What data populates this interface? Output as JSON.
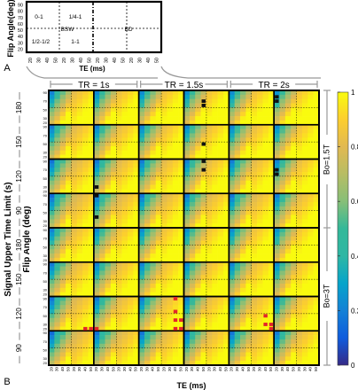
{
  "chart_data": {
    "type": "heatmap",
    "panel_a": {
      "label": "A",
      "ylabel": "Flip Angle(deg)",
      "xlabel": "TE (ms)",
      "y_ticks": [
        "90",
        "80",
        "70",
        "60",
        "50",
        "40",
        "30",
        "20"
      ],
      "x_ticks": [
        "20",
        "30",
        "40",
        "50",
        "20",
        "30",
        "40",
        "50",
        "20",
        "30",
        "40",
        "50",
        "20",
        "30",
        "40",
        "50"
      ],
      "quadrants": [
        "0-1",
        "1/4-1",
        "1/2-1/2",
        "1-1"
      ],
      "left_label": "BSW",
      "right_label": "BD"
    },
    "panel_b": {
      "label": "B",
      "tr_labels": [
        "TR = 1s",
        "TR = 1.5s",
        "TR = 2s"
      ],
      "b0_labels": [
        "Bo=1.5T",
        "Bo=3T"
      ],
      "time_limits": [
        "180",
        "150",
        "120",
        "90",
        "180",
        "150",
        "120",
        "90"
      ],
      "outer_ylabel": "Signal Upper Time Limit (s)",
      "inner_ylabel": "Flip Angle (deg)",
      "xlabel": "TE (ms)",
      "y_ticks": [
        "90",
        "80",
        "70",
        "60",
        "50",
        "40",
        "30",
        "20"
      ],
      "x_ticks": [
        "20",
        "30",
        "40",
        "50",
        "20",
        "30",
        "40",
        "50"
      ],
      "n_rows": 8,
      "n_cols": 6,
      "black_markers": [
        {
          "row": 0,
          "col": 3,
          "te": 50,
          "fa": 70
        },
        {
          "row": 0,
          "col": 3,
          "te": 50,
          "fa": 60
        },
        {
          "row": 0,
          "col": 5,
          "te": 20,
          "fa": 80
        },
        {
          "row": 0,
          "col": 5,
          "te": 20,
          "fa": 70
        },
        {
          "row": 1,
          "col": 3,
          "te": 50,
          "fa": 50
        },
        {
          "row": 2,
          "col": 3,
          "te": 50,
          "fa": 90
        },
        {
          "row": 2,
          "col": 3,
          "te": 50,
          "fa": 70
        },
        {
          "row": 2,
          "col": 5,
          "te": 20,
          "fa": 70
        },
        {
          "row": 2,
          "col": 5,
          "te": 20,
          "fa": 60
        },
        {
          "row": 2,
          "col": 1,
          "te": 20,
          "fa": 30
        },
        {
          "row": 3,
          "col": 1,
          "te": 20,
          "fa": 90
        },
        {
          "row": 3,
          "col": 1,
          "te": 20,
          "fa": 40
        }
      ],
      "red_markers": [
        {
          "row": 6,
          "col": 2,
          "te": 40,
          "fa": 90
        },
        {
          "row": 6,
          "col": 2,
          "te": 40,
          "fa": 60
        },
        {
          "row": 6,
          "col": 2,
          "te": 40,
          "fa": 40
        },
        {
          "row": 6,
          "col": 2,
          "te": 50,
          "fa": 40
        },
        {
          "row": 6,
          "col": 2,
          "te": 40,
          "fa": 20
        },
        {
          "row": 6,
          "col": 2,
          "te": 50,
          "fa": 20
        },
        {
          "row": 6,
          "col": 0,
          "te": 40,
          "fa": 20
        },
        {
          "row": 6,
          "col": 0,
          "te": 50,
          "fa": 20
        },
        {
          "row": 6,
          "col": 1,
          "te": 20,
          "fa": 20
        },
        {
          "row": 6,
          "col": 4,
          "te": 40,
          "fa": 50
        },
        {
          "row": 6,
          "col": 4,
          "te": 40,
          "fa": 30
        },
        {
          "row": 6,
          "col": 4,
          "te": 50,
          "fa": 30
        },
        {
          "row": 6,
          "col": 4,
          "te": 50,
          "fa": 20
        }
      ]
    },
    "colorbar": {
      "ticks": [
        "1",
        "0.8",
        "0.6",
        "0.4",
        "0.2",
        "0"
      ],
      "range": [
        0,
        1
      ],
      "colormap": "parula"
    }
  }
}
